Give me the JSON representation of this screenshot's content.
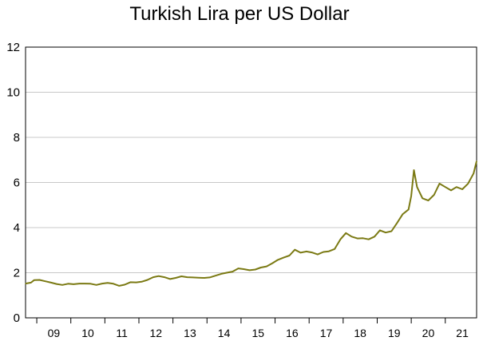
{
  "chart_data": {
    "type": "line",
    "title": "Turkish Lira per US Dollar",
    "xlabel": "",
    "ylabel": "",
    "ylim": [
      0,
      12
    ],
    "xlim": [
      2008.67,
      2021.92
    ],
    "yticks": [
      0,
      2,
      4,
      6,
      8,
      10,
      12
    ],
    "xticks": [
      "09",
      "10",
      "11",
      "12",
      "13",
      "14",
      "15",
      "16",
      "17",
      "18",
      "19",
      "20",
      "21"
    ],
    "grid": "horizontal",
    "line_color": "#7b7a14",
    "series": [
      {
        "name": "",
        "points": [
          [
            2008.67,
            1.52
          ],
          [
            2008.83,
            1.56
          ],
          [
            2008.92,
            1.67
          ],
          [
            2009.08,
            1.68
          ],
          [
            2009.25,
            1.62
          ],
          [
            2009.42,
            1.56
          ],
          [
            2009.58,
            1.5
          ],
          [
            2009.75,
            1.46
          ],
          [
            2009.92,
            1.51
          ],
          [
            2010.08,
            1.49
          ],
          [
            2010.25,
            1.52
          ],
          [
            2010.42,
            1.52
          ],
          [
            2010.58,
            1.51
          ],
          [
            2010.75,
            1.46
          ],
          [
            2010.92,
            1.52
          ],
          [
            2011.08,
            1.55
          ],
          [
            2011.25,
            1.51
          ],
          [
            2011.42,
            1.42
          ],
          [
            2011.58,
            1.47
          ],
          [
            2011.75,
            1.58
          ],
          [
            2011.92,
            1.57
          ],
          [
            2012.08,
            1.6
          ],
          [
            2012.25,
            1.68
          ],
          [
            2012.42,
            1.8
          ],
          [
            2012.58,
            1.85
          ],
          [
            2012.75,
            1.8
          ],
          [
            2012.92,
            1.72
          ],
          [
            2013.08,
            1.77
          ],
          [
            2013.25,
            1.84
          ],
          [
            2013.42,
            1.8
          ],
          [
            2013.58,
            1.79
          ],
          [
            2013.75,
            1.78
          ],
          [
            2013.92,
            1.77
          ],
          [
            2014.08,
            1.79
          ],
          [
            2014.25,
            1.87
          ],
          [
            2014.42,
            1.95
          ],
          [
            2014.58,
            2.0
          ],
          [
            2014.75,
            2.05
          ],
          [
            2014.92,
            2.19
          ],
          [
            2015.08,
            2.16
          ],
          [
            2015.25,
            2.11
          ],
          [
            2015.42,
            2.14
          ],
          [
            2015.58,
            2.23
          ],
          [
            2015.75,
            2.28
          ],
          [
            2015.92,
            2.42
          ],
          [
            2016.08,
            2.57
          ],
          [
            2016.25,
            2.67
          ],
          [
            2016.42,
            2.76
          ],
          [
            2016.58,
            3.02
          ],
          [
            2016.75,
            2.89
          ],
          [
            2016.92,
            2.94
          ],
          [
            2017.08,
            2.9
          ],
          [
            2017.25,
            2.81
          ],
          [
            2017.42,
            2.92
          ],
          [
            2017.58,
            2.95
          ],
          [
            2017.75,
            3.05
          ],
          [
            2017.92,
            3.48
          ],
          [
            2018.08,
            3.76
          ],
          [
            2018.25,
            3.6
          ],
          [
            2018.42,
            3.52
          ],
          [
            2018.58,
            3.53
          ],
          [
            2018.75,
            3.48
          ],
          [
            2018.92,
            3.6
          ],
          [
            2019.08,
            3.88
          ],
          [
            2019.25,
            3.78
          ],
          [
            2019.42,
            3.84
          ],
          [
            2019.58,
            4.2
          ],
          [
            2019.75,
            4.6
          ],
          [
            2019.92,
            4.8
          ],
          [
            2020.0,
            5.4
          ],
          [
            2020.08,
            6.55
          ],
          [
            2020.17,
            5.8
          ],
          [
            2020.33,
            5.3
          ],
          [
            2020.5,
            5.2
          ],
          [
            2020.67,
            5.45
          ],
          [
            2020.83,
            5.95
          ],
          [
            2021.0,
            5.8
          ],
          [
            2021.17,
            5.65
          ],
          [
            2021.33,
            5.8
          ],
          [
            2021.5,
            5.7
          ],
          [
            2021.67,
            5.95
          ],
          [
            2021.83,
            6.4
          ],
          [
            2021.92,
            6.95
          ]
        ]
      }
    ]
  }
}
